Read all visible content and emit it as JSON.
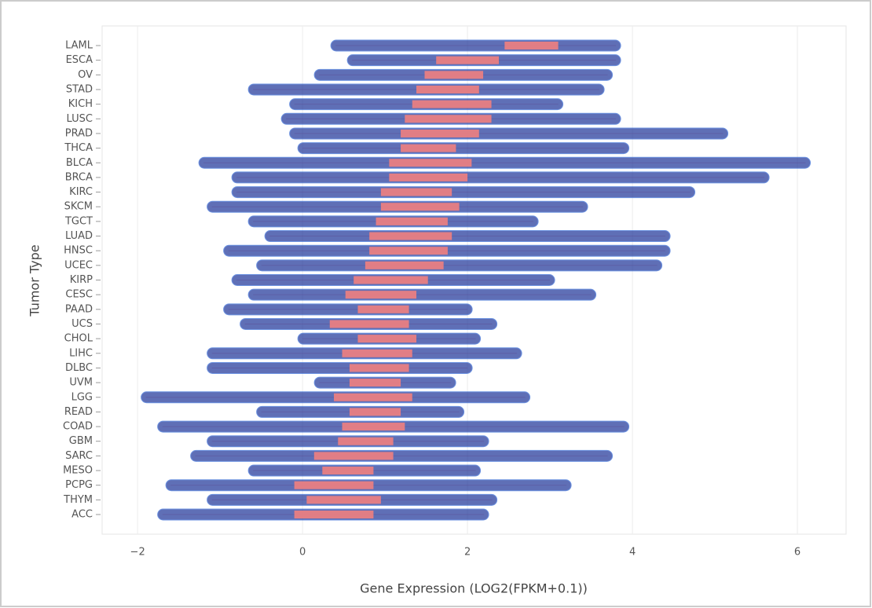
{
  "chart_data": {
    "type": "boxplot",
    "x_label": "Gene Expression (LOG2(FPKM+0.1))",
    "y_label": "Tumor Type",
    "categories": [
      "LAML",
      "ESCA",
      "OV",
      "STAD",
      "KICH",
      "LUSC",
      "PRAD",
      "THCA",
      "BLCA",
      "BRCA",
      "KIRC",
      "SKCM",
      "TGCT",
      "LUAD",
      "HNSC",
      "UCEC",
      "KIRP",
      "CESC",
      "PAAD",
      "UCS",
      "CHOL",
      "LIHC",
      "DLBC",
      "UVM",
      "LGG",
      "READ",
      "COAD",
      "GBM",
      "SARC",
      "MESO",
      "PCPG",
      "THYM",
      "ACC"
    ],
    "low": [
      0.4,
      0.6,
      0.2,
      -0.6,
      -0.1,
      -0.2,
      -0.1,
      0,
      -1.2,
      -0.8,
      -0.8,
      -1.1,
      -0.6,
      -0.4,
      -0.9,
      -0.5,
      -0.8,
      -0.6,
      -0.9,
      -0.7,
      0,
      -1.1,
      -1.1,
      0.2,
      -1.9,
      -0.5,
      -1.7,
      -1.1,
      -1.3,
      -0.6,
      -1.6,
      -1.1,
      -1.7
    ],
    "q1": [
      2.45,
      1.62,
      1.48,
      1.38,
      1.33,
      1.24,
      1.19,
      1.19,
      1.05,
      1.05,
      0.95,
      0.95,
      0.89,
      0.81,
      0.81,
      0.76,
      0.62,
      0.52,
      0.67,
      0.33,
      0.67,
      0.48,
      0.57,
      0.57,
      0.38,
      0.57,
      0.48,
      0.43,
      0.14,
      0.24,
      -0.1,
      0.05,
      -0.1
    ],
    "q3": [
      3.1,
      2.38,
      2.19,
      2.14,
      2.29,
      2.29,
      2.14,
      1.86,
      2.05,
      2.0,
      1.81,
      1.9,
      1.76,
      1.81,
      1.76,
      1.71,
      1.52,
      1.38,
      1.29,
      1.29,
      1.38,
      1.33,
      1.29,
      1.19,
      1.33,
      1.19,
      1.24,
      1.1,
      1.1,
      0.86,
      0.86,
      0.95,
      0.86
    ],
    "high": [
      3.8,
      3.8,
      3.7,
      3.6,
      3.1,
      3.8,
      5.1,
      3.9,
      6.1,
      5.6,
      4.7,
      3.4,
      2.8,
      4.4,
      4.4,
      4.3,
      3.0,
      3.5,
      2.0,
      2.3,
      2.1,
      2.6,
      2.0,
      1.8,
      2.7,
      1.9,
      3.9,
      2.2,
      3.7,
      2.1,
      3.2,
      2.3,
      2.2
    ],
    "box_color": "#f08080",
    "point_color": "#2a3f9e",
    "xlim": [
      -2.43,
      6.59
    ],
    "xticks": [
      {
        "value": -2,
        "label": "−2"
      },
      0,
      2,
      4,
      6
    ],
    "grid": true
  }
}
